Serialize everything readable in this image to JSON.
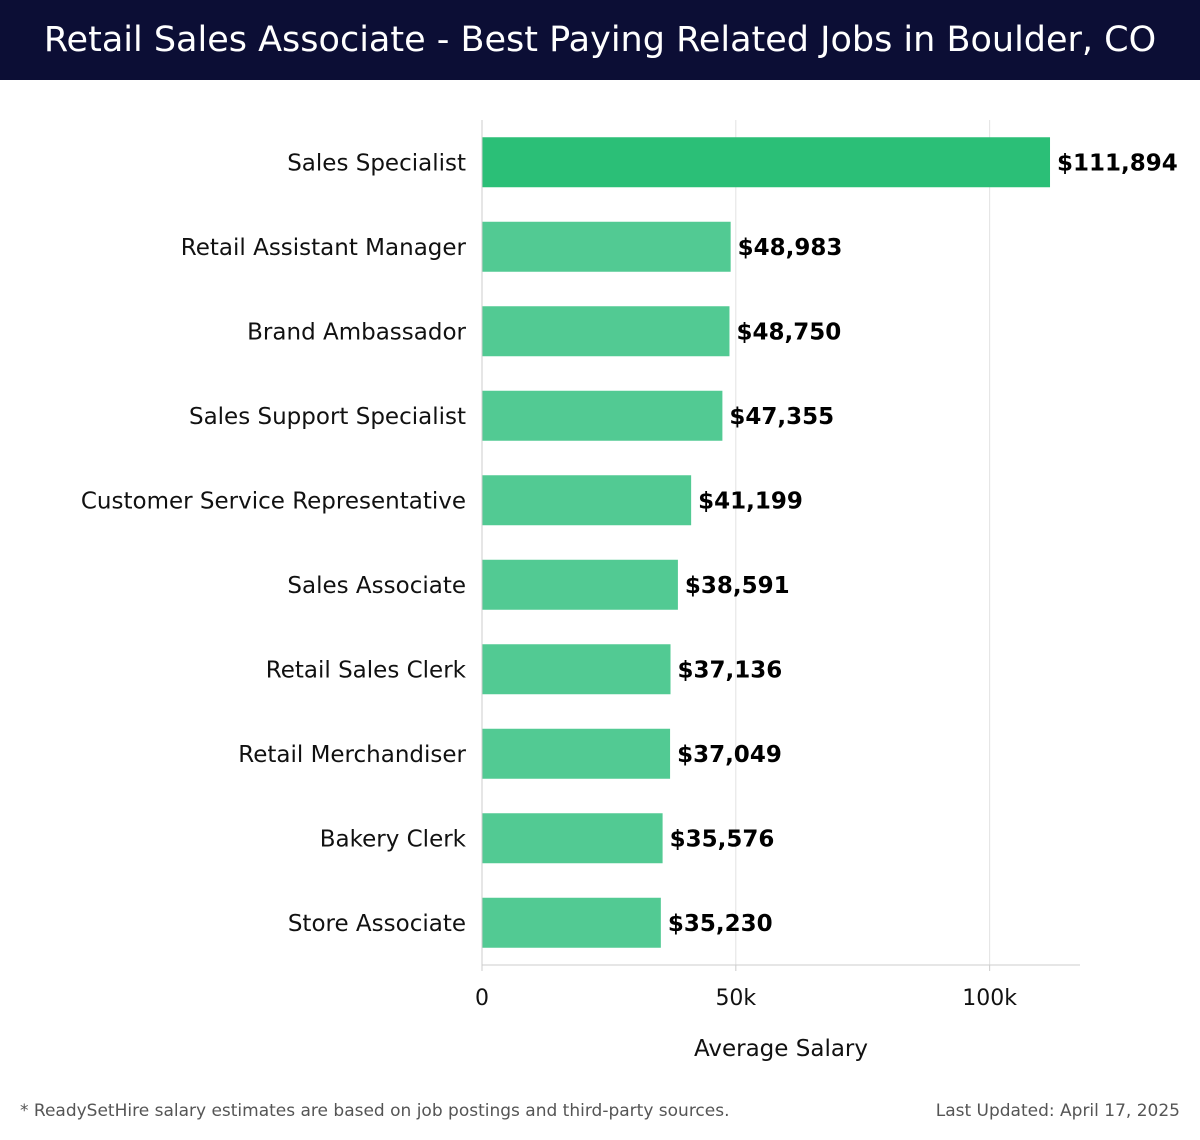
{
  "header": {
    "title": "Retail Sales Associate - Best Paying Related Jobs in Boulder, CO"
  },
  "footer": {
    "note": "* ReadySetHire salary estimates are based on job postings and third-party sources.",
    "updated": "Last Updated: April 17, 2025"
  },
  "colors": {
    "header_bg": "#0c0e35",
    "bar_top": "#2bbf77",
    "bar": "#52ca93"
  },
  "chart_data": {
    "type": "bar",
    "orientation": "horizontal",
    "categories": [
      "Sales Specialist",
      "Retail Assistant Manager",
      "Brand Ambassador",
      "Sales Support Specialist",
      "Customer Service Representative",
      "Sales Associate",
      "Retail Sales Clerk",
      "Retail Merchandiser",
      "Bakery Clerk",
      "Store Associate"
    ],
    "values": [
      111894,
      48983,
      48750,
      47355,
      41199,
      38591,
      37136,
      37049,
      35576,
      35230
    ],
    "value_labels": [
      "$111,894",
      "$48,983",
      "$48,750",
      "$47,355",
      "$41,199",
      "$38,591",
      "$37,136",
      "$37,049",
      "$35,576",
      "$35,230"
    ],
    "xlabel": "Average Salary",
    "ylabel": "",
    "xlim": [
      0,
      117800
    ],
    "xticks": [
      0,
      50000,
      100000
    ],
    "xtick_labels": [
      "0",
      "50k",
      "100k"
    ],
    "grid": true,
    "legend": "none"
  }
}
